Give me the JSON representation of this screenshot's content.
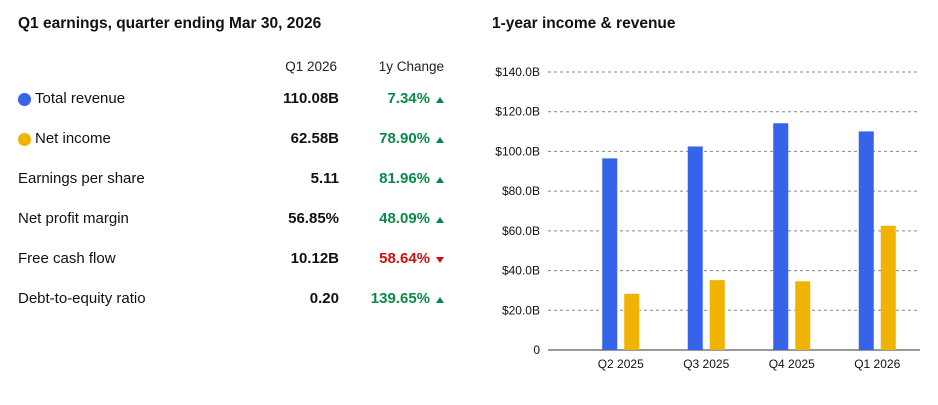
{
  "earnings": {
    "title": "Q1 earnings, quarter ending Mar 30, 2026",
    "col_q1": "Q1 2026",
    "col_change": "1y Change",
    "colors": {
      "positive": "#0a8a4a",
      "negative": "#cc1111"
    },
    "rows": [
      {
        "label": "Total revenue",
        "value": "110.08B",
        "change": "7.34%",
        "direction": "up",
        "legend_color": "#3563e9"
      },
      {
        "label": "Net income",
        "value": "62.58B",
        "change": "78.90%",
        "direction": "up",
        "legend_color": "#f0b400"
      },
      {
        "label": "Earnings per share",
        "value": "5.11",
        "change": "81.96%",
        "direction": "up"
      },
      {
        "label": "Net profit margin",
        "value": "56.85%",
        "change": "48.09%",
        "direction": "up"
      },
      {
        "label": "Free cash flow",
        "value": "10.12B",
        "change": "58.64%",
        "direction": "down"
      },
      {
        "label": "Debt-to-equity ratio",
        "value": "0.20",
        "change": "139.65%",
        "direction": "up"
      }
    ]
  },
  "chart_data": {
    "type": "bar",
    "title": "1-year income & revenue",
    "categories": [
      "Q2 2025",
      "Q3 2025",
      "Q4 2025",
      "Q1 2026"
    ],
    "series": [
      {
        "values": [
          96.5,
          102.5,
          114.2,
          110.08
        ],
        "color": "#3563e9"
      },
      {
        "values": [
          28.3,
          35.2,
          34.6,
          62.58
        ],
        "color": "#f0b400"
      }
    ],
    "ylim": [
      0,
      140
    ],
    "yticks": [
      0,
      20,
      40,
      60,
      80,
      100,
      120,
      140
    ],
    "ytick_labels": [
      "0",
      "$20.0B",
      "$40.0B",
      "$60.0B",
      "$80.0B",
      "$100.0B",
      "$120.0B",
      "$140.0B"
    ],
    "grid": true,
    "xlabel": "",
    "ylabel": ""
  }
}
